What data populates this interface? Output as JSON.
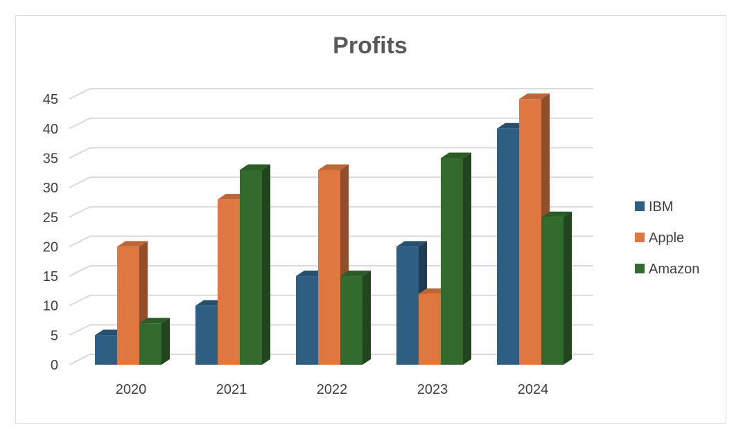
{
  "chart_data": {
    "type": "bar",
    "title": "Profits",
    "categories": [
      "2020",
      "2021",
      "2022",
      "2023",
      "2024"
    ],
    "series": [
      {
        "name": "IBM",
        "values": [
          5,
          10,
          15,
          20,
          40
        ],
        "color": "#2e5e82"
      },
      {
        "name": "Apple",
        "values": [
          20,
          28,
          33,
          12,
          45
        ],
        "color": "#de7840"
      },
      {
        "name": "Amazon",
        "values": [
          7,
          33,
          15,
          35,
          25
        ],
        "color": "#336b2e"
      }
    ],
    "ylim": [
      0,
      45
    ],
    "yticks": [
      "0",
      "5",
      "10",
      "15",
      "20",
      "25",
      "30",
      "35",
      "40",
      "45"
    ],
    "grid": true,
    "legend_position": "right",
    "style": "3d-clustered-column"
  }
}
